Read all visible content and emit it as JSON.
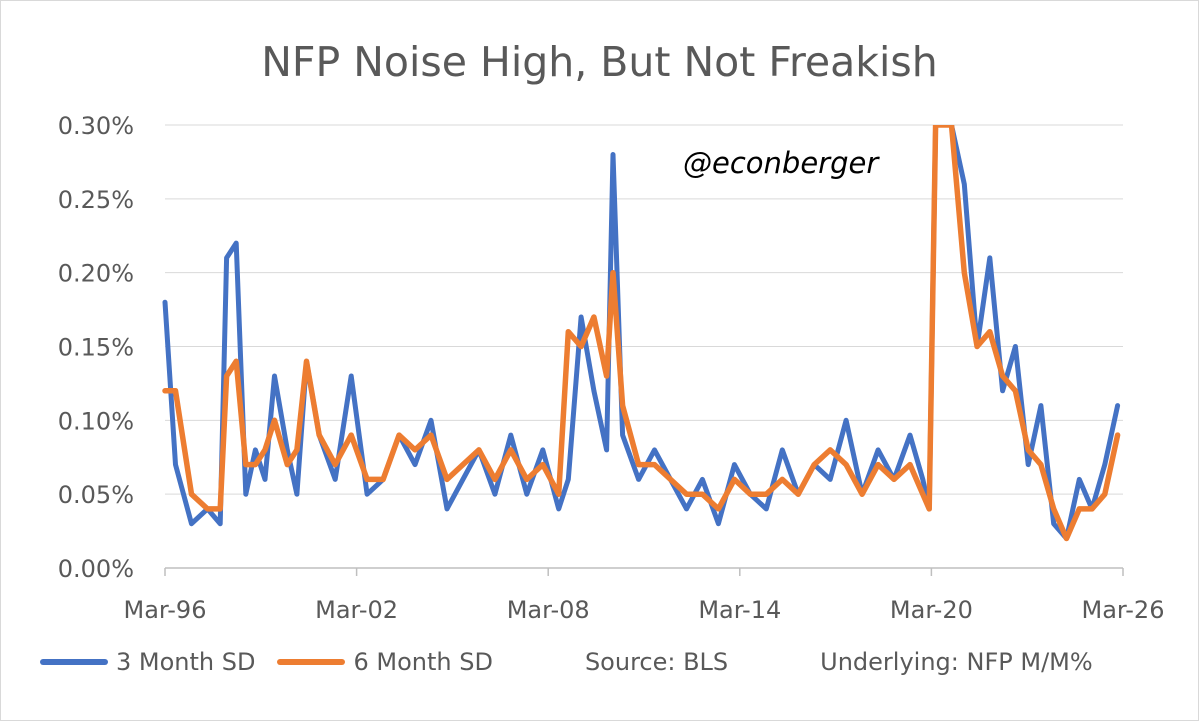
{
  "chart_data": {
    "type": "line",
    "title": "NFP Noise High, But Not Freakish",
    "watermark": "@econberger",
    "xlabel": "",
    "ylabel": "",
    "x_tick_labels": [
      "Mar-96",
      "Mar-02",
      "Mar-08",
      "Mar-14",
      "Mar-20",
      "Mar-26"
    ],
    "x_range": [
      1996.17,
      2026.17
    ],
    "y_tick_labels": [
      "0.00%",
      "0.05%",
      "0.10%",
      "0.15%",
      "0.20%",
      "0.25%",
      "0.30%"
    ],
    "ylim": [
      0,
      0.3
    ],
    "y_unit": "percent",
    "grid": "horizontal",
    "legend_position": "bottom",
    "source": "Source: BLS",
    "note": "Underlying: NFP M/M%",
    "series": [
      {
        "name": "3 Month SD",
        "color": "#4472C4",
        "x": [
          1996.17,
          1996.5,
          1997.0,
          1997.5,
          1997.9,
          1998.1,
          1998.4,
          1998.7,
          1999.0,
          1999.3,
          1999.6,
          2000.0,
          2000.3,
          2000.6,
          2001.0,
          2001.5,
          2002.0,
          2002.5,
          2003.0,
          2003.5,
          2004.0,
          2004.5,
          2005.0,
          2005.5,
          2006.0,
          2006.5,
          2007.0,
          2007.5,
          2008.0,
          2008.5,
          2008.8,
          2009.2,
          2009.6,
          2010.0,
          2010.2,
          2010.5,
          2011.0,
          2011.5,
          2012.0,
          2012.5,
          2013.0,
          2013.5,
          2014.0,
          2014.5,
          2015.0,
          2015.5,
          2016.0,
          2016.5,
          2017.0,
          2017.5,
          2018.0,
          2018.5,
          2019.0,
          2019.5,
          2019.9,
          2020.1,
          2020.3,
          2020.8,
          2021.2,
          2021.6,
          2022.0,
          2022.4,
          2022.8,
          2023.2,
          2023.6,
          2024.0,
          2024.4,
          2024.8,
          2025.2,
          2025.6,
          2026.0
        ],
        "y": [
          0.18,
          0.07,
          0.03,
          0.04,
          0.03,
          0.21,
          0.22,
          0.05,
          0.08,
          0.06,
          0.13,
          0.08,
          0.05,
          0.14,
          0.09,
          0.06,
          0.13,
          0.05,
          0.06,
          0.09,
          0.07,
          0.1,
          0.04,
          0.06,
          0.08,
          0.05,
          0.09,
          0.05,
          0.08,
          0.04,
          0.06,
          0.17,
          0.12,
          0.08,
          0.28,
          0.09,
          0.06,
          0.08,
          0.06,
          0.04,
          0.06,
          0.03,
          0.07,
          0.05,
          0.04,
          0.08,
          0.05,
          0.07,
          0.06,
          0.1,
          0.05,
          0.08,
          0.06,
          0.09,
          0.06,
          0.04,
          0.3,
          0.3,
          0.26,
          0.15,
          0.21,
          0.12,
          0.15,
          0.07,
          0.11,
          0.03,
          0.02,
          0.06,
          0.04,
          0.07,
          0.11
        ]
      },
      {
        "name": "6 Month SD",
        "color": "#ED7D31",
        "x": [
          1996.17,
          1996.5,
          1997.0,
          1997.5,
          1997.9,
          1998.1,
          1998.4,
          1998.7,
          1999.0,
          1999.3,
          1999.6,
          2000.0,
          2000.3,
          2000.6,
          2001.0,
          2001.5,
          2002.0,
          2002.5,
          2003.0,
          2003.5,
          2004.0,
          2004.5,
          2005.0,
          2005.5,
          2006.0,
          2006.5,
          2007.0,
          2007.5,
          2008.0,
          2008.5,
          2008.8,
          2009.2,
          2009.6,
          2010.0,
          2010.2,
          2010.5,
          2011.0,
          2011.5,
          2012.0,
          2012.5,
          2013.0,
          2013.5,
          2014.0,
          2014.5,
          2015.0,
          2015.5,
          2016.0,
          2016.5,
          2017.0,
          2017.5,
          2018.0,
          2018.5,
          2019.0,
          2019.5,
          2019.9,
          2020.1,
          2020.3,
          2020.8,
          2021.2,
          2021.6,
          2022.0,
          2022.4,
          2022.8,
          2023.2,
          2023.6,
          2024.0,
          2024.4,
          2024.8,
          2025.2,
          2025.6,
          2026.0
        ],
        "y": [
          0.12,
          0.12,
          0.05,
          0.04,
          0.04,
          0.13,
          0.14,
          0.07,
          0.07,
          0.08,
          0.1,
          0.07,
          0.08,
          0.14,
          0.09,
          0.07,
          0.09,
          0.06,
          0.06,
          0.09,
          0.08,
          0.09,
          0.06,
          0.07,
          0.08,
          0.06,
          0.08,
          0.06,
          0.07,
          0.05,
          0.16,
          0.15,
          0.17,
          0.13,
          0.2,
          0.11,
          0.07,
          0.07,
          0.06,
          0.05,
          0.05,
          0.04,
          0.06,
          0.05,
          0.05,
          0.06,
          0.05,
          0.07,
          0.08,
          0.07,
          0.05,
          0.07,
          0.06,
          0.07,
          0.05,
          0.04,
          0.3,
          0.3,
          0.2,
          0.15,
          0.16,
          0.13,
          0.12,
          0.08,
          0.07,
          0.04,
          0.02,
          0.04,
          0.04,
          0.05,
          0.09
        ]
      }
    ]
  }
}
